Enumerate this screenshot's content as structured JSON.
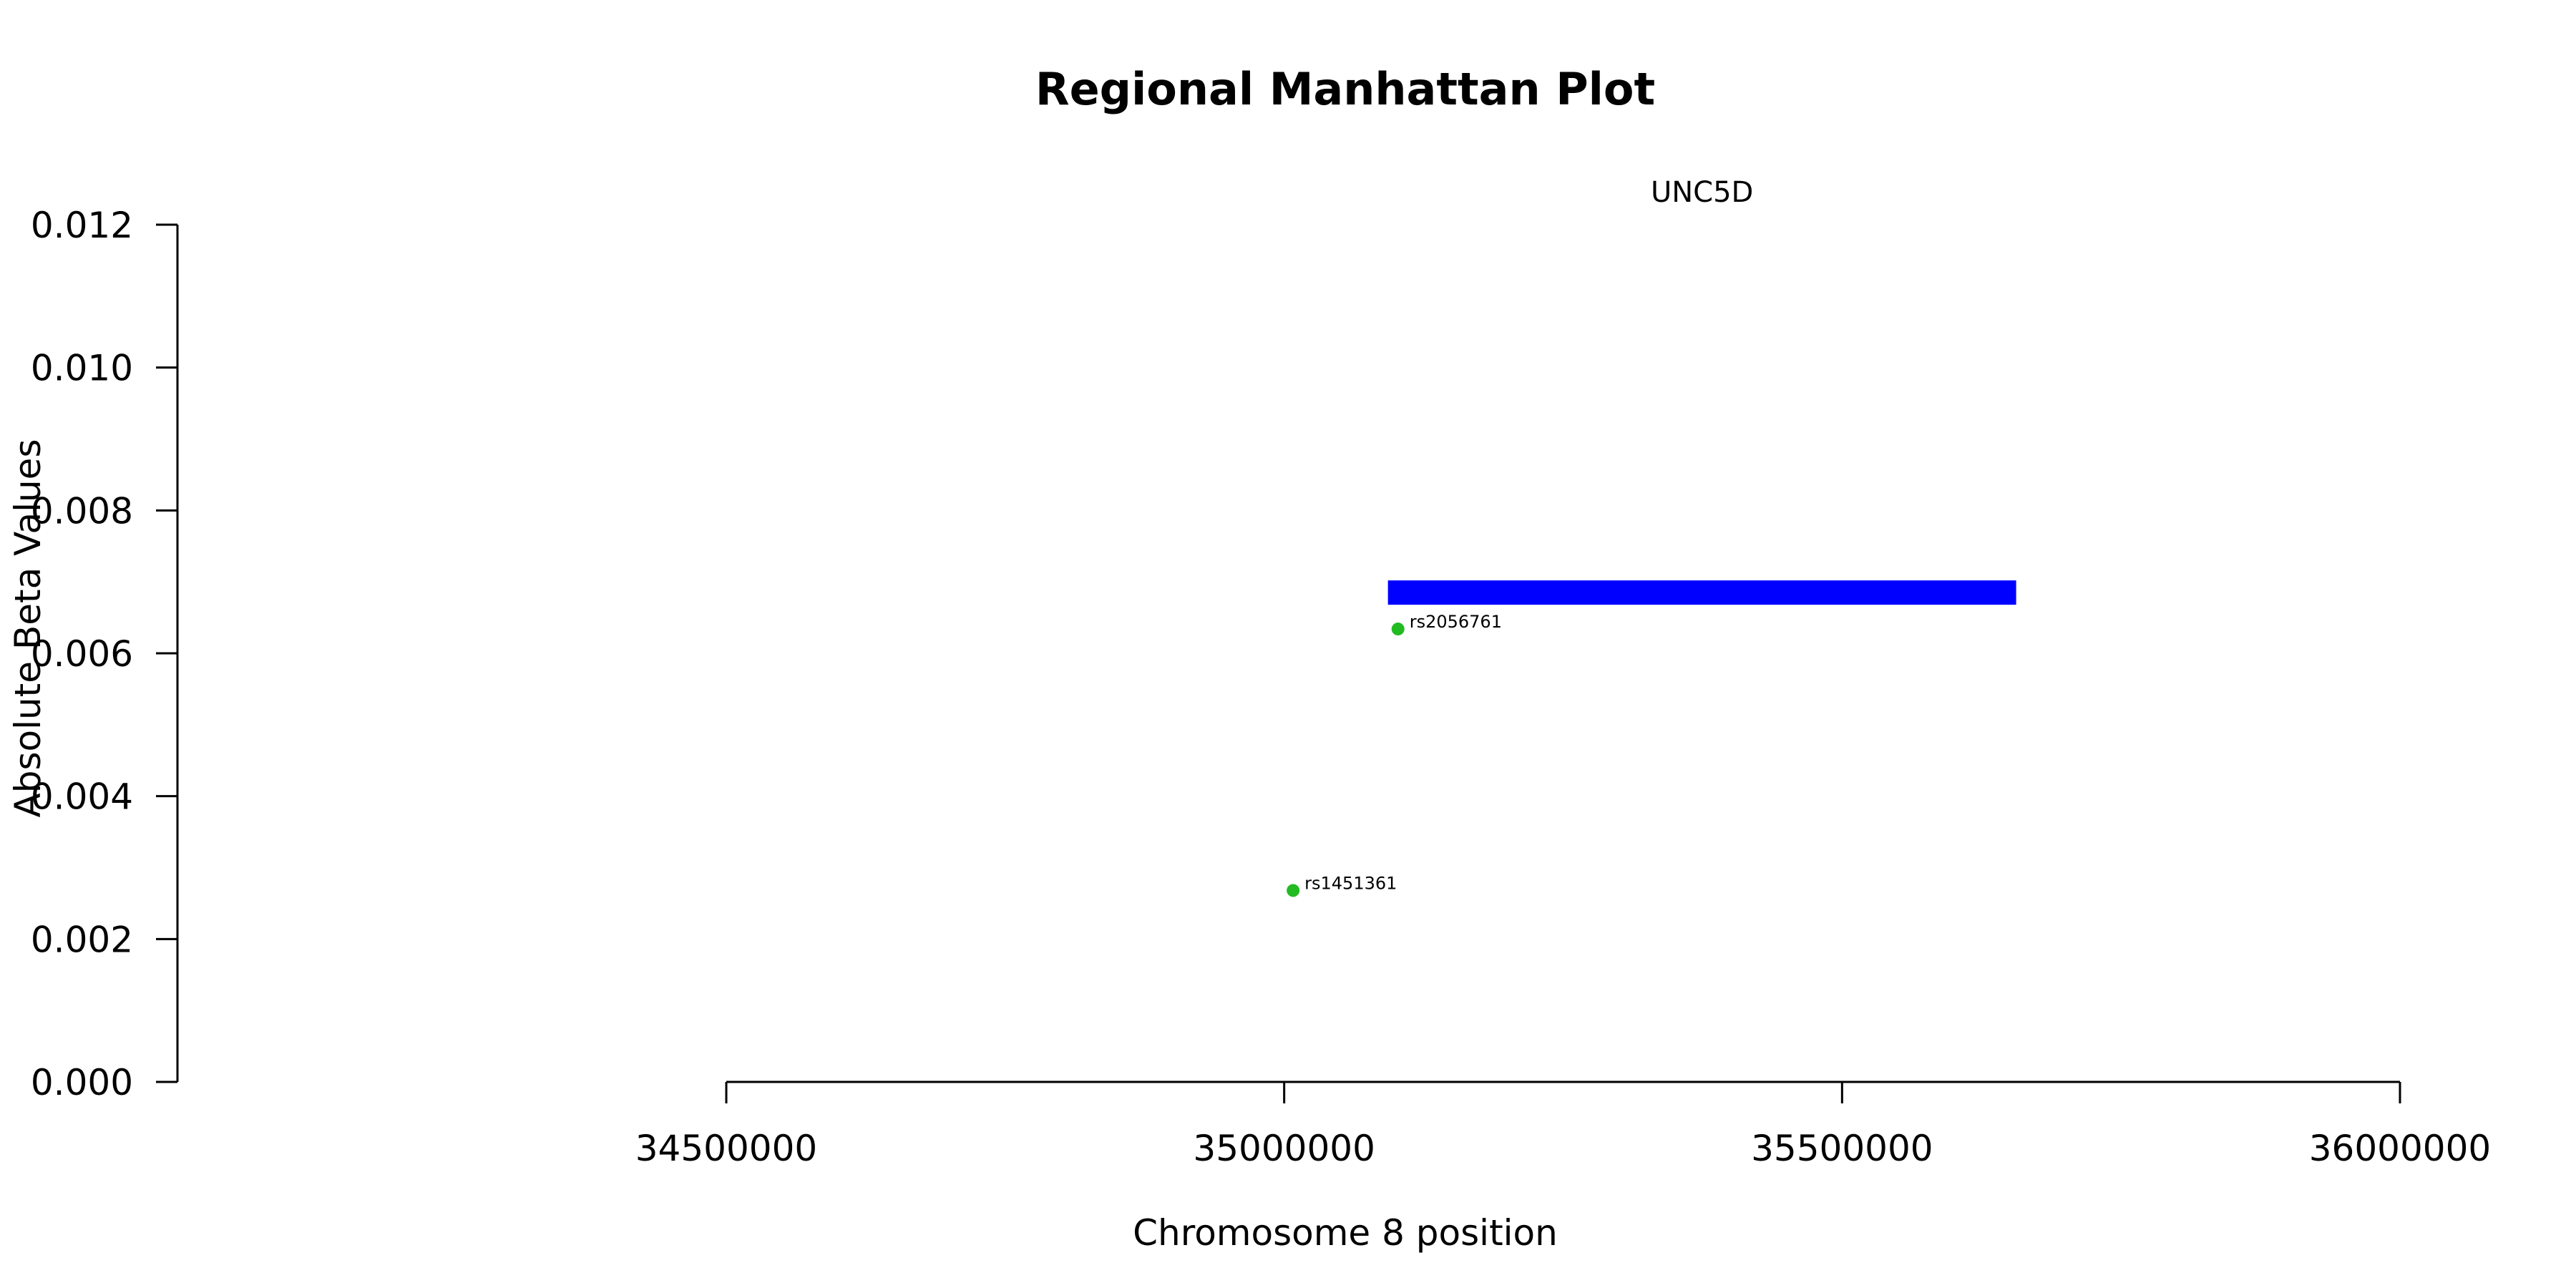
{
  "chart_data": {
    "type": "scatter",
    "title": "Regional Manhattan Plot",
    "xlabel": "Chromosome 8 position",
    "ylabel": "Absolute Beta Values",
    "xlim": [
      34500000,
      36000000
    ],
    "ylim": [
      0,
      0.012
    ],
    "x_ticks": [
      {
        "value": 34500000,
        "label": "34500000"
      },
      {
        "value": 35000000,
        "label": "35000000"
      },
      {
        "value": 35500000,
        "label": "35500000"
      },
      {
        "value": 36000000,
        "label": "36000000"
      }
    ],
    "y_ticks": [
      {
        "value": 0.0,
        "label": "0.000"
      },
      {
        "value": 0.002,
        "label": "0.002"
      },
      {
        "value": 0.004,
        "label": "0.004"
      },
      {
        "value": 0.006,
        "label": "0.006"
      },
      {
        "value": 0.008,
        "label": "0.008"
      },
      {
        "value": 0.01,
        "label": "0.010"
      },
      {
        "value": 0.012,
        "label": "0.012"
      }
    ],
    "points": [
      {
        "label": "rs1451361",
        "x": 35008000,
        "y": 0.00268
      },
      {
        "label": "rs2056761",
        "x": 35102000,
        "y": 0.00634
      }
    ],
    "point_color": "#22bb22",
    "gene": {
      "name": "UNC5D",
      "start": 35093000,
      "end": 35656000,
      "y": 0.00685,
      "color": "#0000ff"
    },
    "grid": false,
    "legend": "none"
  }
}
